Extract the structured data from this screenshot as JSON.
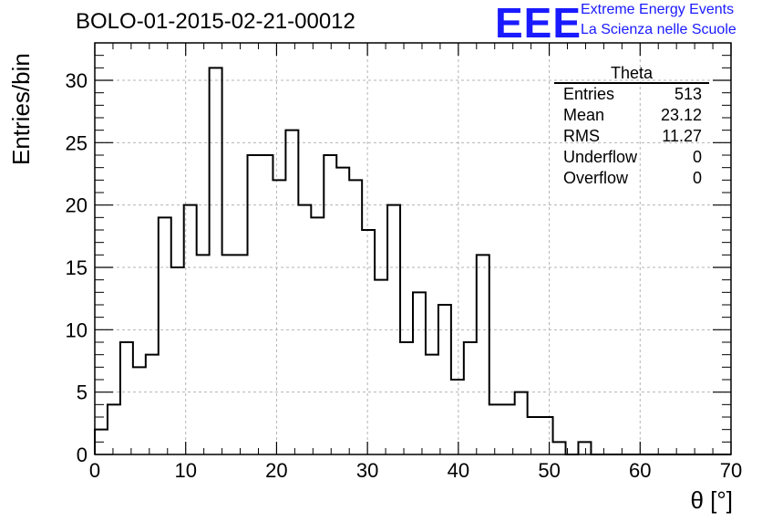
{
  "title": "BOLO-01-2015-02-21-00012",
  "logo": {
    "mark": "EEE",
    "line1": "Extreme Energy Events",
    "line2": "La Scienza nelle Scuole",
    "color": "#1a1aff"
  },
  "stats_box": {
    "title": "Theta",
    "rows": [
      {
        "label": "Entries",
        "value": "513"
      },
      {
        "label": "Mean",
        "value": "23.12"
      },
      {
        "label": "RMS",
        "value": "11.27"
      },
      {
        "label": "Underflow",
        "value": "0"
      },
      {
        "label": "Overflow",
        "value": "0"
      }
    ]
  },
  "chart_data": {
    "type": "bar",
    "histogram": true,
    "title": "BOLO-01-2015-02-21-00012",
    "xlabel": "θ [°]",
    "ylabel": "Entries/bin",
    "xlim": [
      0,
      70
    ],
    "ylim": [
      0,
      33
    ],
    "bin_width": 1.4,
    "x_ticks": [
      "0",
      "10",
      "20",
      "30",
      "40",
      "50",
      "60",
      "70"
    ],
    "y_ticks": [
      "0",
      "5",
      "10",
      "15",
      "20",
      "25",
      "30"
    ],
    "grid": true,
    "values": [
      2,
      4,
      9,
      7,
      8,
      19,
      15,
      20,
      16,
      31,
      16,
      16,
      24,
      24,
      22,
      26,
      20,
      19,
      24,
      23,
      22,
      18,
      14,
      20,
      9,
      13,
      8,
      12,
      6,
      9,
      16,
      4,
      4,
      5,
      3,
      3,
      1,
      0,
      1,
      0,
      0,
      0,
      0,
      0,
      0,
      0,
      0,
      0,
      0,
      0
    ]
  }
}
